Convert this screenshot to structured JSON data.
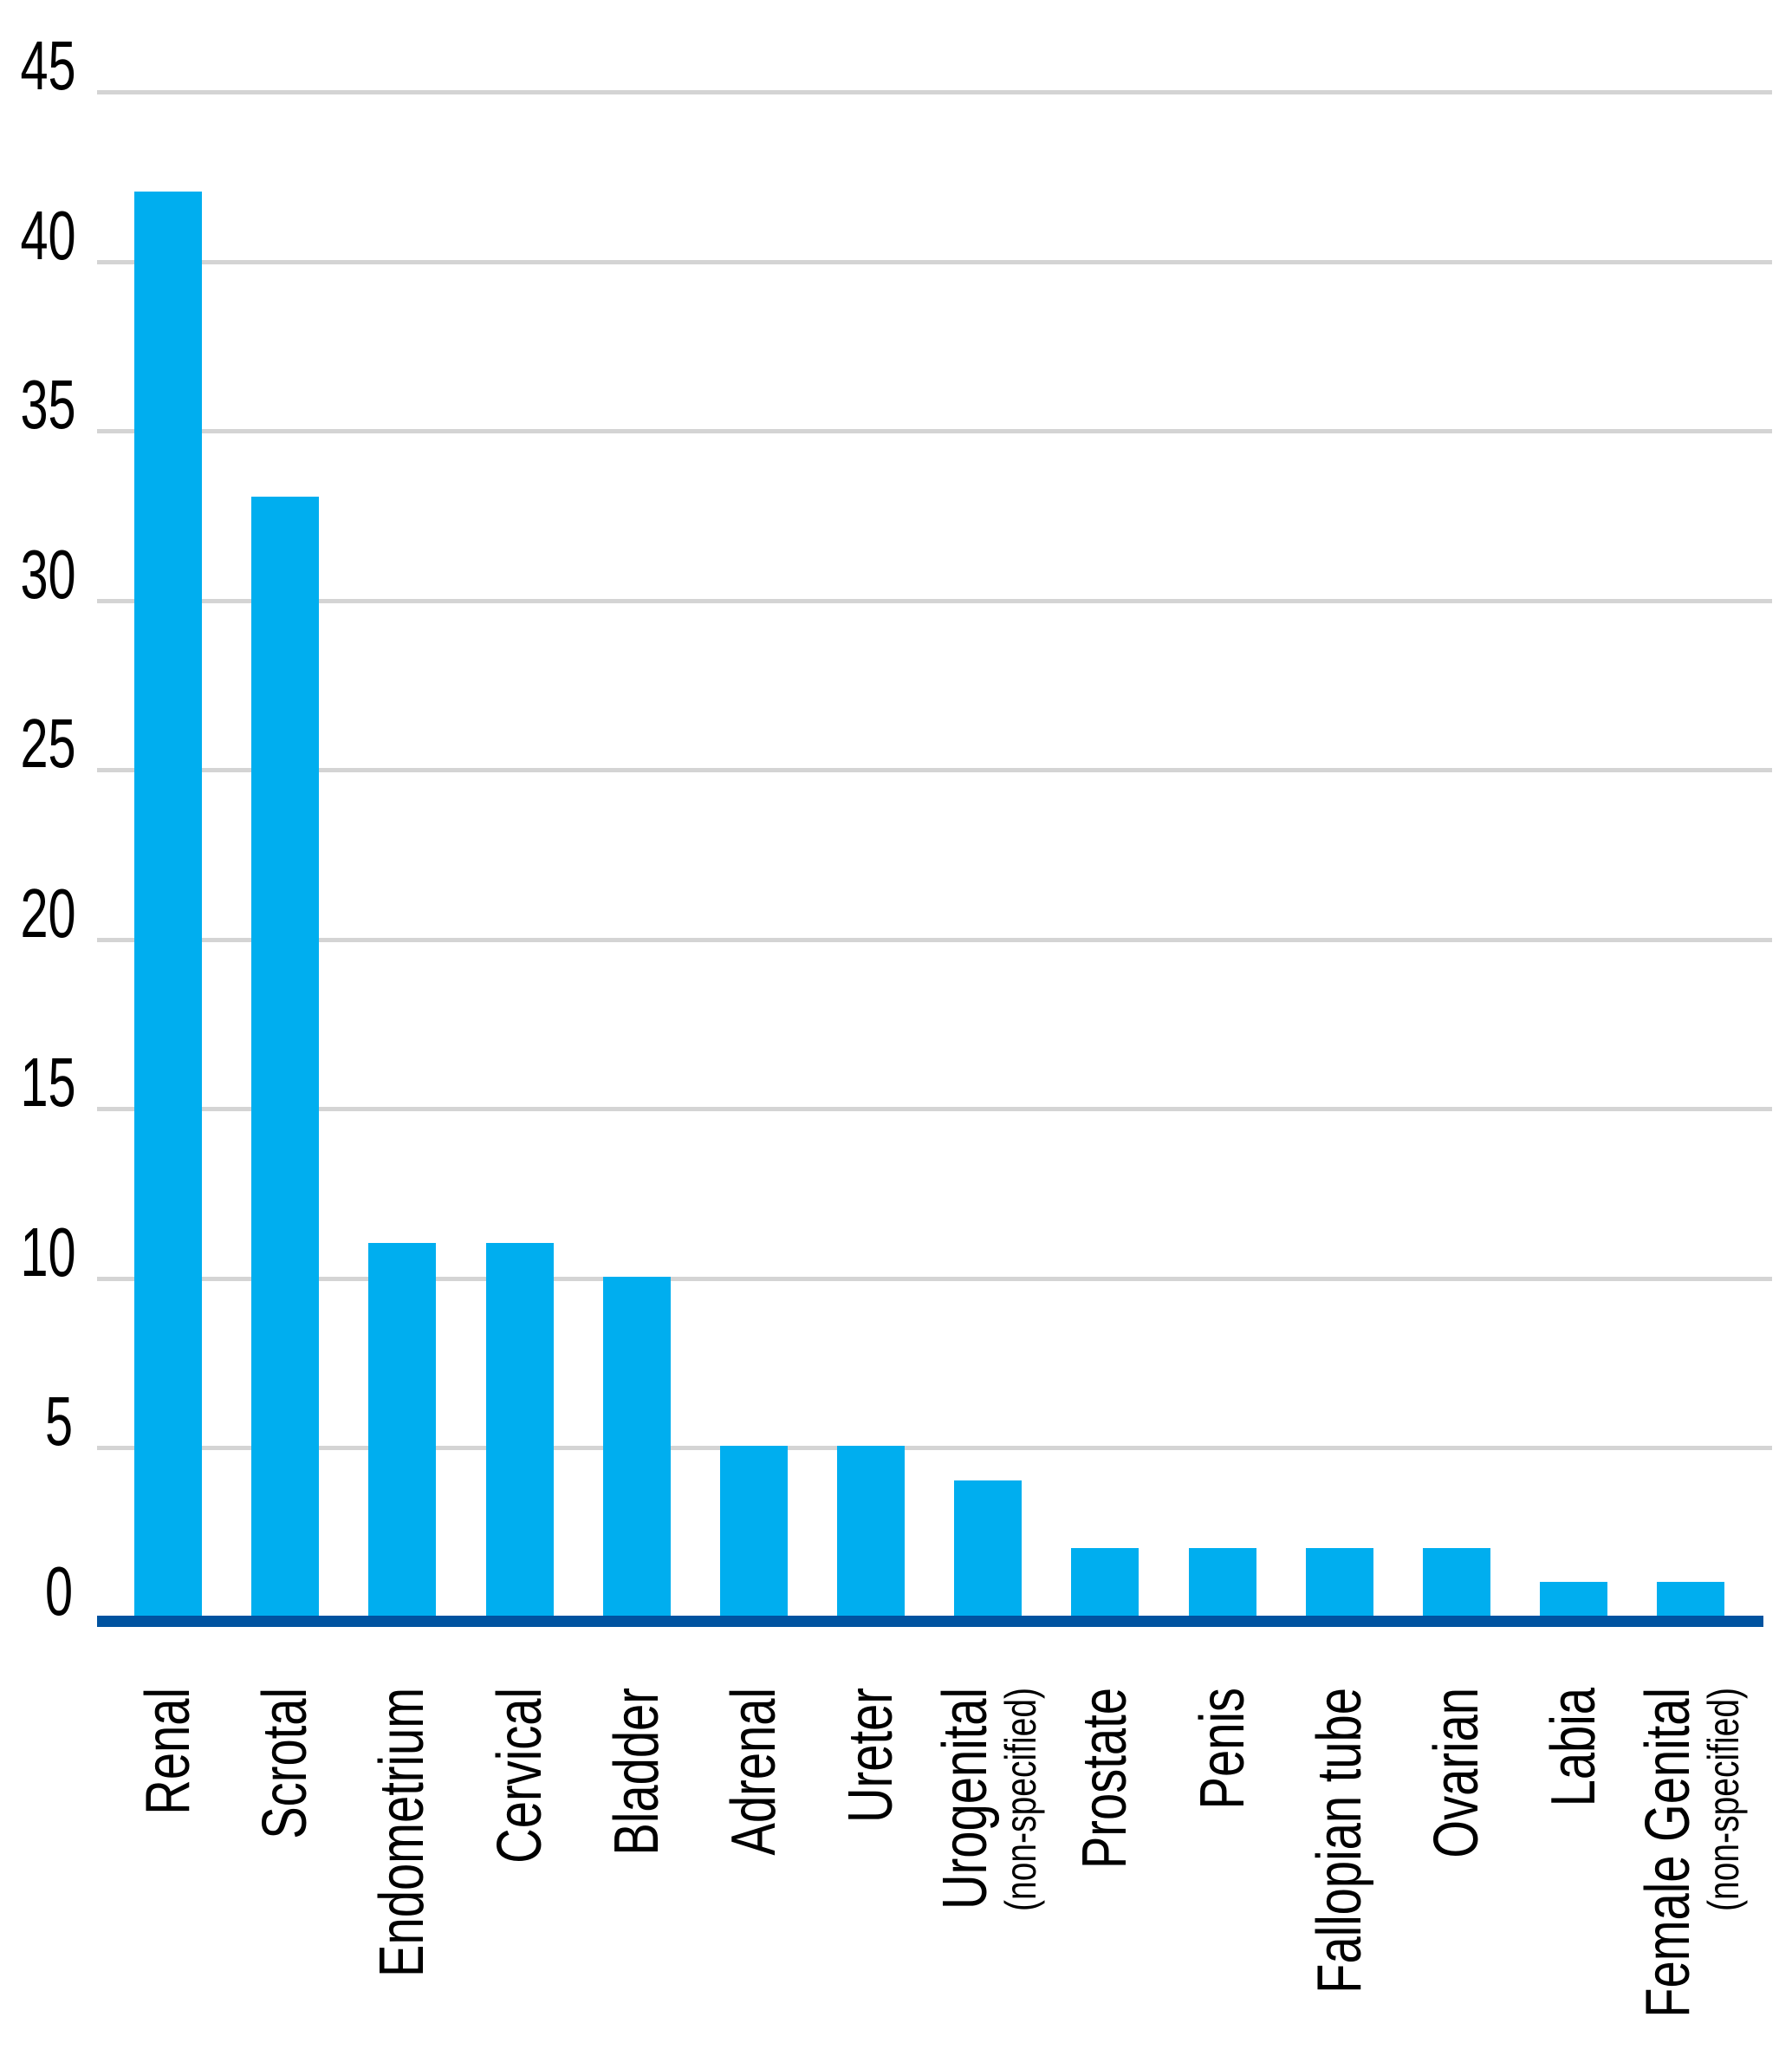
{
  "chart_data": {
    "type": "bar",
    "title": "",
    "xlabel": "",
    "ylabel": "",
    "categories": [
      {
        "label": "Renal",
        "sublabel": ""
      },
      {
        "label": "Scrotal",
        "sublabel": ""
      },
      {
        "label": "Endometrium",
        "sublabel": ""
      },
      {
        "label": "Cervical",
        "sublabel": ""
      },
      {
        "label": "Bladder",
        "sublabel": ""
      },
      {
        "label": "Adrenal",
        "sublabel": ""
      },
      {
        "label": "Ureter",
        "sublabel": ""
      },
      {
        "label": "Urogenital",
        "sublabel": "(non-specified)"
      },
      {
        "label": "Prostate",
        "sublabel": ""
      },
      {
        "label": "Penis",
        "sublabel": ""
      },
      {
        "label": "Fallopian tube",
        "sublabel": ""
      },
      {
        "label": "Ovarian",
        "sublabel": ""
      },
      {
        "label": "Labia",
        "sublabel": ""
      },
      {
        "label": "Female Genital",
        "sublabel": "(non-specified)"
      }
    ],
    "values": [
      42,
      33,
      11,
      11,
      10,
      5,
      5,
      4,
      2,
      2,
      2,
      2,
      1,
      1
    ],
    "ylim": [
      0,
      45
    ],
    "yticks": [
      0,
      5,
      10,
      15,
      20,
      25,
      30,
      35,
      40,
      45
    ],
    "grid": "horizontal",
    "legend": "none",
    "colors": {
      "bar": "#00AEEF",
      "axis_line": "#0053A0",
      "gridline": "#D4D4D4",
      "text": "#000000",
      "background": "#FFFFFF"
    }
  }
}
